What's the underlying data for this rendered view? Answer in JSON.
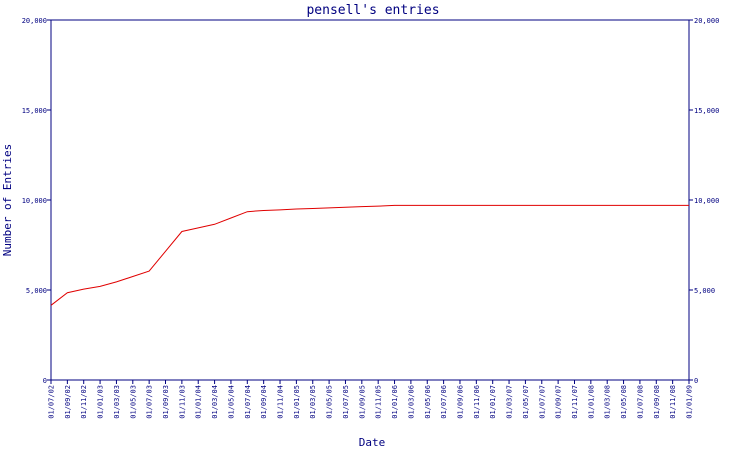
{
  "chart_data": {
    "type": "line",
    "title": "pensell's entries",
    "xlabel": "Date",
    "ylabel": "Number of Entries",
    "ylim": [
      0,
      20000
    ],
    "yticks": [
      "0",
      "5,000",
      "10,000",
      "15,000",
      "20,000"
    ],
    "ytick_values": [
      0,
      5000,
      10000,
      15000,
      20000
    ],
    "grid": false,
    "x_tick_labels": [
      "01/07/02",
      "01/09/02",
      "01/11/02",
      "01/01/03",
      "01/03/03",
      "01/05/03",
      "01/07/03",
      "01/09/03",
      "01/11/03",
      "01/01/04",
      "01/03/04",
      "01/05/04",
      "01/07/04",
      "01/09/04",
      "01/11/04",
      "01/01/05",
      "01/03/05",
      "01/05/05",
      "01/07/05",
      "01/09/05",
      "01/11/05",
      "01/01/06",
      "01/03/06",
      "01/05/06",
      "01/07/06",
      "01/09/06",
      "01/11/06",
      "01/01/07",
      "01/03/07",
      "01/05/07",
      "01/07/07",
      "01/09/07",
      "01/11/07",
      "01/01/08",
      "01/03/08",
      "01/05/08",
      "01/07/08",
      "01/09/08",
      "01/11/08",
      "01/01/09"
    ],
    "series": [
      {
        "color": "#e00000",
        "x": [
          "01/07/02",
          "01/09/02",
          "01/11/02",
          "01/01/03",
          "01/03/03",
          "01/05/03",
          "01/07/03",
          "01/09/03",
          "01/11/03",
          "01/01/04",
          "01/03/04",
          "01/05/04",
          "01/07/04",
          "01/09/04",
          "01/11/04",
          "01/01/05",
          "01/03/05",
          "01/05/05",
          "01/07/05",
          "01/09/05",
          "01/11/05",
          "01/01/06",
          "01/03/06",
          "01/05/06",
          "01/07/06",
          "01/09/06",
          "01/11/06",
          "01/01/07",
          "01/03/07",
          "01/05/07",
          "01/07/07",
          "01/09/07",
          "01/11/07",
          "01/01/08",
          "01/03/08",
          "01/05/08",
          "01/07/08",
          "01/09/08",
          "01/11/08",
          "01/01/09"
        ],
        "values": [
          4150,
          4850,
          5050,
          5200,
          5450,
          5750,
          6050,
          7150,
          8250,
          8450,
          8650,
          9000,
          9350,
          9420,
          9450,
          9500,
          9530,
          9560,
          9600,
          9630,
          9660,
          9700,
          9700,
          9700,
          9700,
          9700,
          9700,
          9700,
          9700,
          9700,
          9700,
          9700,
          9700,
          9700,
          9700,
          9700,
          9700,
          9700,
          9700,
          9700
        ]
      }
    ]
  }
}
